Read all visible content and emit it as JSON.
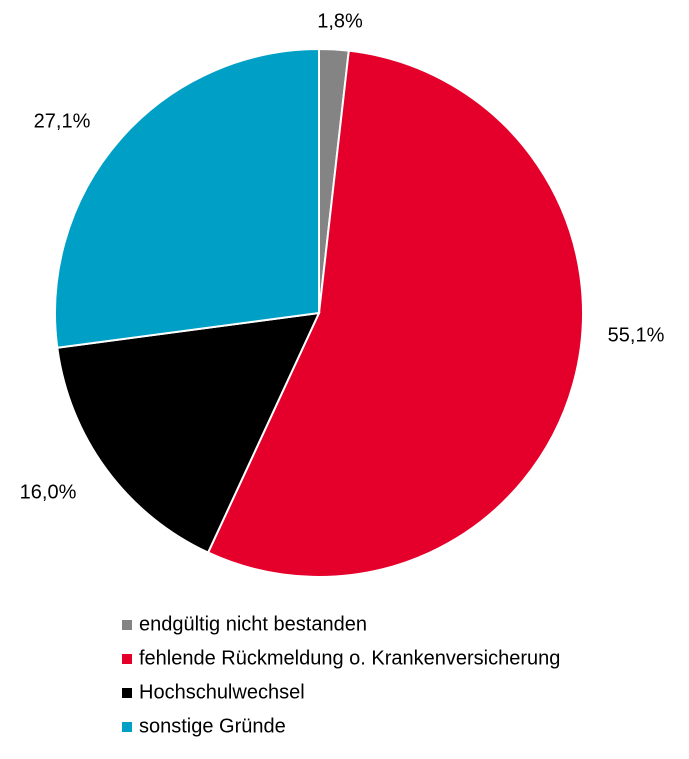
{
  "chart_data": {
    "type": "pie",
    "categories": [
      "endgültig nicht bestanden",
      "fehlende Rückmeldung o. Krankenversicherung",
      "Hochschulwechsel",
      "sonstige Gründe"
    ],
    "values": [
      1.8,
      55.1,
      16.0,
      27.1
    ],
    "value_labels": [
      "1,8%",
      "55,1%",
      "16,0%",
      "27,1%"
    ],
    "colors": [
      "#848484",
      "#e4002b",
      "#000000",
      "#00a0c6"
    ],
    "legend": "bottom"
  }
}
